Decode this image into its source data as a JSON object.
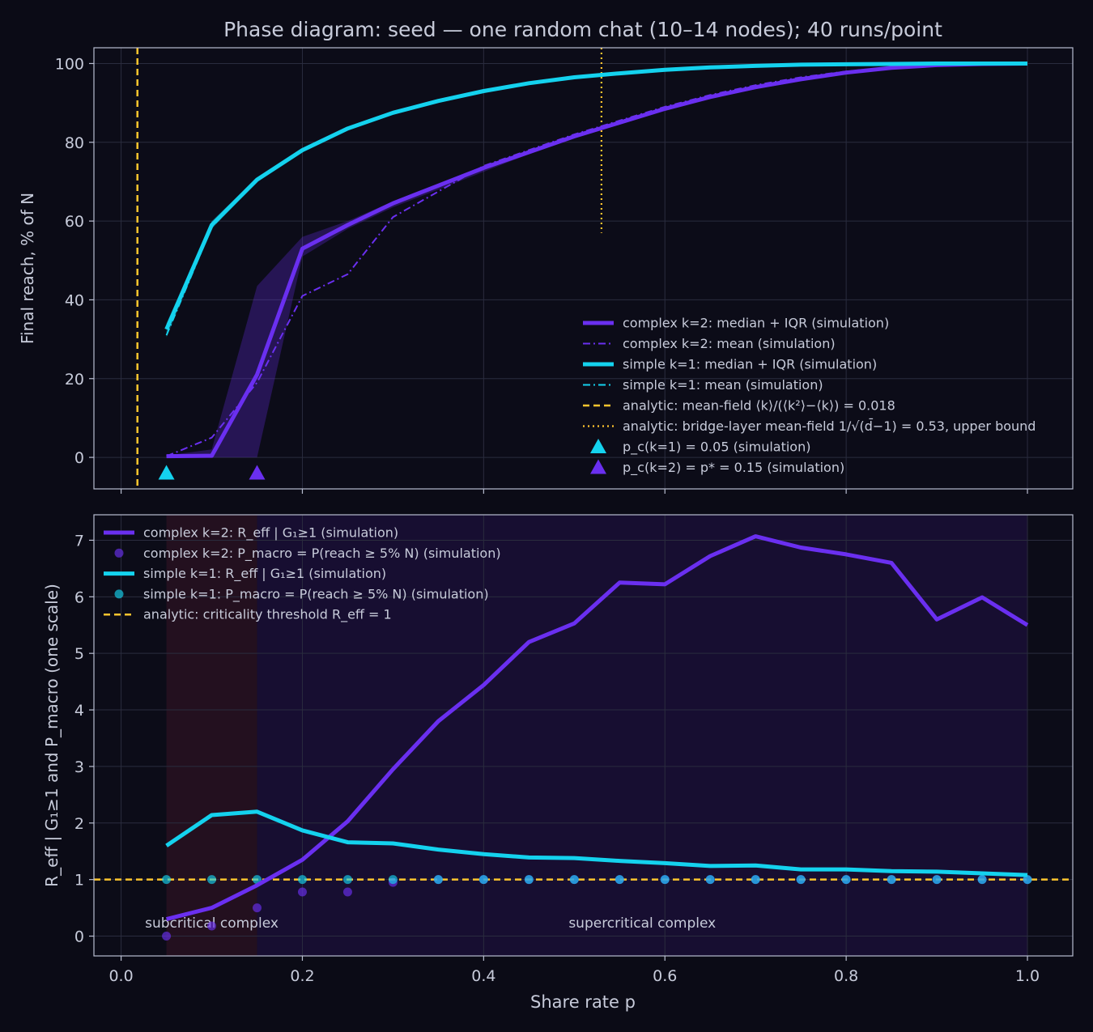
{
  "title": "Phase diagram: seed — one random chat (10–14 nodes); 40 runs/point",
  "xlabel": "Share rate p",
  "x_ticks": [
    0.0,
    0.2,
    0.4,
    0.6,
    0.8,
    1.0
  ],
  "x_tick_labels": [
    "0.0",
    "0.2",
    "0.4",
    "0.6",
    "0.8",
    "1.0"
  ],
  "colors": {
    "background": "#0b0b16",
    "plot_bg": "#0c0c18",
    "complex": "#6a2ff0",
    "simple": "#14d2ee",
    "analytic": "#ffc52e",
    "axis": "#b8bdd0",
    "grid": "#2a2c3e",
    "text": "#c7cbda"
  },
  "chart_data": [
    {
      "type": "line",
      "ylabel": "Final reach, % of N",
      "xlim": [
        -0.03,
        1.05
      ],
      "ylim": [
        -8,
        104
      ],
      "y_ticks": [
        0,
        20,
        40,
        60,
        80,
        100
      ],
      "y_tick_labels": [
        "0",
        "20",
        "40",
        "60",
        "80",
        "100"
      ],
      "grid": true,
      "legend_position": "lower-right",
      "legend": [
        "complex k=2: median + IQR (simulation)",
        "complex k=2: mean (simulation)",
        "simple k=1: median + IQR (simulation)",
        "simple k=1: mean (simulation)",
        "analytic: mean-field ⟨k⟩/(⟨k²⟩−⟨k⟩) = 0.018",
        "analytic: bridge-layer mean-field 1/√(d̄−1) = 0.53, upper bound",
        "p_c(k=1) = 0.05 (simulation)",
        "p_c(k=2) = p* = 0.15 (simulation)"
      ],
      "series": [
        {
          "role": "complex-median",
          "x": [
            0.05,
            0.1,
            0.15,
            0.2,
            0.25,
            0.3,
            0.35,
            0.4,
            0.45,
            0.5,
            0.55,
            0.6,
            0.65,
            0.7,
            0.75,
            0.8,
            0.85,
            0.9,
            0.95,
            1.0
          ],
          "y": [
            0.3,
            0.4,
            21,
            53,
            59,
            64.5,
            69,
            73.5,
            77.5,
            81.5,
            85,
            88.5,
            91.5,
            94,
            96,
            97.7,
            98.9,
            99.6,
            99.9,
            100
          ],
          "iqr_low": [
            0,
            0,
            0,
            51,
            58,
            63.5,
            68,
            72.5,
            77,
            81,
            84.5,
            88,
            91,
            93.5,
            95.5,
            97.5,
            98.8,
            99.5,
            99.9,
            100
          ],
          "iqr_high": [
            0.5,
            2,
            43.5,
            56,
            60,
            65,
            69.5,
            74,
            78,
            82,
            85.5,
            89,
            92,
            94.5,
            96.5,
            98,
            99,
            99.7,
            100,
            100
          ]
        },
        {
          "role": "complex-mean",
          "x": [
            0.05,
            0.1,
            0.15,
            0.2,
            0.25,
            0.3,
            0.35,
            0.4,
            0.45,
            0.5,
            0.55,
            0.6,
            0.65,
            0.7,
            0.75,
            0.8,
            0.85,
            0.9,
            0.95,
            1.0
          ],
          "y": [
            0.3,
            5,
            19,
            41,
            46.5,
            61,
            67.5,
            74,
            78,
            82,
            85.5,
            89,
            92,
            94.5,
            96.5,
            98,
            99,
            99.7,
            99.9,
            100
          ]
        },
        {
          "role": "simple-median",
          "x": [
            0.05,
            0.1,
            0.15,
            0.2,
            0.25,
            0.3,
            0.35,
            0.4,
            0.45,
            0.5,
            0.55,
            0.6,
            0.65,
            0.7,
            0.75,
            0.8,
            0.85,
            0.9,
            0.95,
            1.0
          ],
          "y": [
            32.5,
            59,
            70.5,
            78,
            83.5,
            87.5,
            90.5,
            93,
            95,
            96.5,
            97.5,
            98.4,
            99,
            99.4,
            99.7,
            99.8,
            99.9,
            100,
            100,
            100
          ],
          "iqr_low": [
            30.5,
            58,
            70,
            77.5,
            83,
            87,
            90,
            92.7,
            94.8,
            96.3,
            97.3,
            98.3,
            98.9,
            99.3,
            99.6,
            99.8,
            99.9,
            100,
            100,
            100
          ],
          "iqr_high": [
            34,
            60,
            71,
            78.5,
            84,
            88,
            91,
            93.3,
            95.2,
            96.7,
            97.7,
            98.5,
            99.1,
            99.5,
            99.8,
            99.9,
            100,
            100,
            100,
            100
          ]
        },
        {
          "role": "simple-mean",
          "x": [
            0.05,
            0.1,
            0.15,
            0.2,
            0.25,
            0.3,
            0.35,
            0.4,
            0.45,
            0.5,
            0.55,
            0.6,
            0.65,
            0.7,
            0.75,
            0.8,
            0.85,
            0.9,
            0.95,
            1.0
          ],
          "y": [
            31,
            58.5,
            70.3,
            77.8,
            83.3,
            87.3,
            90.3,
            92.9,
            94.9,
            96.4,
            97.4,
            98.4,
            98.9,
            99.3,
            99.6,
            99.8,
            99.9,
            100,
            100,
            100
          ]
        }
      ],
      "vlines": [
        {
          "role": "mean-field",
          "x": 0.018,
          "style": "dashed",
          "y_from": -8,
          "y_to": 104
        },
        {
          "role": "bridge-layer",
          "x": 0.53,
          "style": "dotted",
          "y_from": 57,
          "y_to": 104
        }
      ],
      "markers": [
        {
          "role": "pc-simple",
          "x": 0.05,
          "y": -4
        },
        {
          "role": "pc-complex",
          "x": 0.15,
          "y": -4
        }
      ]
    },
    {
      "type": "line",
      "ylabel": "R_eff | G₁≥1 and P_macro (one scale)",
      "xlim": [
        -0.03,
        1.05
      ],
      "ylim": [
        -0.35,
        7.45
      ],
      "y_ticks": [
        0,
        1,
        2,
        3,
        4,
        5,
        6,
        7
      ],
      "y_tick_labels": [
        "0",
        "1",
        "2",
        "3",
        "4",
        "5",
        "6",
        "7"
      ],
      "grid": true,
      "legend_position": "upper-left",
      "legend": [
        "complex k=2: R_eff | G₁≥1 (simulation)",
        "complex k=2: P_macro = P(reach ≥ 5% N) (simulation)",
        "simple k=1: R_eff | G₁≥1 (simulation)",
        "simple k=1: P_macro = P(reach ≥ 5% N) (simulation)",
        "analytic: criticality threshold R_eff = 1"
      ],
      "regions": [
        {
          "label": "subcritical complex",
          "x_from": 0.05,
          "x_to": 0.15
        },
        {
          "label": "supercritical complex",
          "x_from": 0.15,
          "x_to": 1.0
        }
      ],
      "series": [
        {
          "role": "complex-reff",
          "x": [
            0.05,
            0.1,
            0.15,
            0.2,
            0.25,
            0.3,
            0.35,
            0.4,
            0.45,
            0.5,
            0.55,
            0.6,
            0.65,
            0.7,
            0.75,
            0.8,
            0.85,
            0.9,
            0.95,
            1.0
          ],
          "y": [
            0.3,
            0.5,
            0.9,
            1.35,
            2.03,
            2.95,
            3.8,
            4.44,
            5.2,
            5.53,
            6.25,
            6.22,
            6.72,
            7.07,
            6.87,
            6.75,
            6.6,
            5.6,
            5.99,
            5.5
          ]
        },
        {
          "role": "complex-pmacro",
          "x": [
            0.05,
            0.1,
            0.15,
            0.2,
            0.25,
            0.3,
            0.35,
            0.4,
            0.45,
            0.5,
            0.55,
            0.6,
            0.65,
            0.7,
            0.75,
            0.8,
            0.85,
            0.9,
            0.95,
            1.0
          ],
          "y": [
            0.0,
            0.18,
            0.5,
            0.78,
            0.78,
            0.95,
            1,
            1,
            1,
            1,
            1,
            1,
            1,
            1,
            1,
            1,
            1,
            1,
            1,
            1
          ]
        },
        {
          "role": "simple-reff",
          "x": [
            0.05,
            0.1,
            0.15,
            0.2,
            0.25,
            0.3,
            0.35,
            0.4,
            0.45,
            0.5,
            0.55,
            0.6,
            0.65,
            0.7,
            0.75,
            0.8,
            0.85,
            0.9,
            0.95,
            1.0
          ],
          "y": [
            1.6,
            2.14,
            2.2,
            1.87,
            1.66,
            1.64,
            1.53,
            1.45,
            1.39,
            1.38,
            1.33,
            1.29,
            1.24,
            1.25,
            1.18,
            1.18,
            1.15,
            1.14,
            1.11,
            1.08
          ]
        },
        {
          "role": "simple-pmacro",
          "x": [
            0.05,
            0.1,
            0.15,
            0.2,
            0.25,
            0.3,
            0.35,
            0.4,
            0.45,
            0.5,
            0.55,
            0.6,
            0.65,
            0.7,
            0.75,
            0.8,
            0.85,
            0.9,
            0.95,
            1.0
          ],
          "y": [
            1,
            1,
            1,
            1,
            1,
            1,
            1,
            1,
            1,
            1,
            1,
            1,
            1,
            1,
            1,
            1,
            1,
            1,
            1,
            1
          ]
        }
      ],
      "hlines": [
        {
          "role": "threshold",
          "y": 1,
          "style": "dashed"
        }
      ]
    }
  ]
}
